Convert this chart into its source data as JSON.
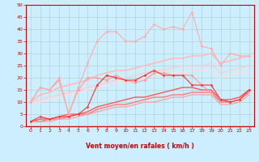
{
  "xlabel": "Vent moyen/en rafales ( km/h )",
  "xlim": [
    -0.5,
    23.5
  ],
  "ylim": [
    0,
    50
  ],
  "yticks": [
    0,
    5,
    10,
    15,
    20,
    25,
    30,
    35,
    40,
    45,
    50
  ],
  "xticks": [
    0,
    1,
    2,
    3,
    4,
    5,
    6,
    7,
    8,
    9,
    10,
    11,
    12,
    13,
    14,
    15,
    16,
    17,
    18,
    19,
    20,
    21,
    22,
    23
  ],
  "background_color": "#cceeff",
  "grid_color": "#aacccc",
  "lines": [
    {
      "x": [
        0,
        1,
        2,
        3,
        4,
        5,
        6,
        7,
        8,
        9,
        10,
        11,
        12,
        13,
        14,
        15,
        16,
        17,
        18,
        19,
        20,
        21,
        22,
        23
      ],
      "y": [
        10,
        16,
        15,
        19,
        5,
        15,
        20,
        20,
        19,
        21,
        19,
        18,
        19,
        22,
        22,
        21,
        21,
        21,
        17,
        14,
        11,
        10,
        11,
        15
      ],
      "color": "#ff9999",
      "linewidth": 0.8,
      "marker": "D",
      "markersize": 1.5
    },
    {
      "x": [
        0,
        1,
        2,
        3,
        4,
        5,
        6,
        7,
        8,
        9,
        10,
        11,
        12,
        13,
        14,
        15,
        16,
        17,
        18,
        19,
        20,
        21,
        22,
        23
      ],
      "y": [
        10,
        16,
        15,
        20,
        5,
        16,
        26,
        35,
        39,
        39,
        35,
        35,
        37,
        42,
        40,
        41,
        40,
        47,
        33,
        32,
        25,
        30,
        29,
        29
      ],
      "color": "#ffaaaa",
      "linewidth": 0.8,
      "marker": "D",
      "markersize": 1.5
    },
    {
      "x": [
        0,
        1,
        2,
        3,
        4,
        5,
        6,
        7,
        8,
        9,
        10,
        11,
        12,
        13,
        14,
        15,
        16,
        17,
        18,
        19,
        20,
        21,
        22,
        23
      ],
      "y": [
        10,
        13,
        14,
        16,
        17,
        18,
        19,
        21,
        22,
        23,
        23,
        24,
        25,
        26,
        27,
        28,
        28,
        29,
        29,
        30,
        26,
        27,
        28,
        29
      ],
      "color": "#ffbbbb",
      "linewidth": 1.2,
      "marker": null,
      "markersize": 0
    },
    {
      "x": [
        0,
        1,
        2,
        3,
        4,
        5,
        6,
        7,
        8,
        9,
        10,
        11,
        12,
        13,
        14,
        15,
        16,
        17,
        18,
        19,
        20,
        21,
        22,
        23
      ],
      "y": [
        10,
        11,
        12,
        13,
        14,
        15,
        16,
        17,
        18,
        19,
        20,
        21,
        22,
        23,
        23,
        24,
        25,
        25,
        25,
        26,
        22,
        23,
        24,
        25
      ],
      "color": "#ffcccc",
      "linewidth": 1.0,
      "marker": null,
      "markersize": 0
    },
    {
      "x": [
        0,
        1,
        2,
        3,
        4,
        5,
        6,
        7,
        8,
        9,
        10,
        11,
        12,
        13,
        14,
        15,
        16,
        17,
        18,
        19,
        20,
        21,
        22,
        23
      ],
      "y": [
        10,
        10,
        11,
        12,
        13,
        14,
        15,
        16,
        17,
        18,
        18,
        19,
        20,
        21,
        21,
        22,
        22,
        23,
        23,
        23,
        20,
        21,
        22,
        22
      ],
      "color": "#ffdddd",
      "linewidth": 1.0,
      "marker": null,
      "markersize": 0
    },
    {
      "x": [
        0,
        1,
        2,
        3,
        4,
        5,
        6,
        7,
        8,
        9,
        10,
        11,
        12,
        13,
        14,
        15,
        16,
        17,
        18,
        19,
        20,
        21,
        22,
        23
      ],
      "y": [
        2,
        4,
        3,
        4,
        4,
        5,
        8,
        17,
        21,
        20,
        19,
        19,
        21,
        23,
        21,
        21,
        21,
        17,
        17,
        17,
        11,
        10,
        11,
        15
      ],
      "color": "#ff3333",
      "linewidth": 0.8,
      "marker": "D",
      "markersize": 1.5
    },
    {
      "x": [
        0,
        1,
        2,
        3,
        4,
        5,
        6,
        7,
        8,
        9,
        10,
        11,
        12,
        13,
        14,
        15,
        16,
        17,
        18,
        19,
        20,
        21,
        22,
        23
      ],
      "y": [
        2,
        3,
        3,
        4,
        5,
        5,
        6,
        8,
        9,
        10,
        11,
        12,
        12,
        13,
        14,
        15,
        16,
        16,
        15,
        15,
        11,
        11,
        12,
        15
      ],
      "color": "#ff5555",
      "linewidth": 1.0,
      "marker": null,
      "markersize": 0
    },
    {
      "x": [
        0,
        1,
        2,
        3,
        4,
        5,
        6,
        7,
        8,
        9,
        10,
        11,
        12,
        13,
        14,
        15,
        16,
        17,
        18,
        19,
        20,
        21,
        22,
        23
      ],
      "y": [
        2,
        2,
        3,
        3,
        4,
        5,
        5,
        7,
        8,
        9,
        9,
        10,
        11,
        12,
        12,
        13,
        13,
        14,
        14,
        14,
        10,
        10,
        11,
        14
      ],
      "color": "#ff7777",
      "linewidth": 1.0,
      "marker": null,
      "markersize": 0
    },
    {
      "x": [
        0,
        1,
        2,
        3,
        4,
        5,
        6,
        7,
        8,
        9,
        10,
        11,
        12,
        13,
        14,
        15,
        16,
        17,
        18,
        19,
        20,
        21,
        22,
        23
      ],
      "y": [
        2,
        2,
        2,
        3,
        3,
        4,
        5,
        6,
        7,
        8,
        8,
        9,
        10,
        10,
        11,
        12,
        12,
        13,
        13,
        13,
        9,
        9,
        10,
        13
      ],
      "color": "#ff9999",
      "linewidth": 0.8,
      "marker": null,
      "markersize": 0
    }
  ],
  "wind_arrows_down": [
    20
  ],
  "arrow_color": "#dd0000",
  "label_color": "#cc0000",
  "tick_color": "#cc0000"
}
